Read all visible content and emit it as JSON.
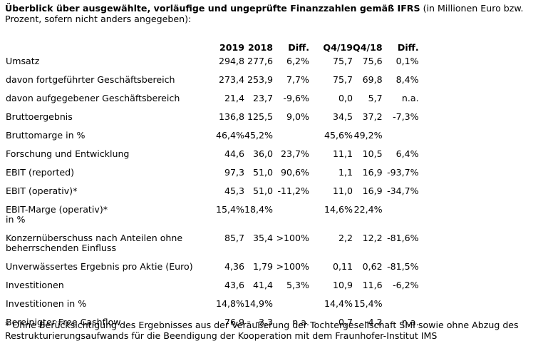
{
  "header": {
    "title_bold": "Überblick über ausgewählte, vorläufige und ungeprüfte Finanzzahlen gemäß IFRS",
    "title_rest": " (in Millionen Euro bzw. Prozent, sofern nicht anders angegeben):"
  },
  "table": {
    "columns": [
      "2019",
      "2018",
      "Diff.",
      "Q4/19",
      "Q4/18",
      "Diff."
    ],
    "rows": [
      {
        "label": "Umsatz",
        "values": [
          "294,8",
          "277,6",
          "6,2%",
          "75,7",
          "75,6",
          "0,1%"
        ]
      },
      {
        "label": "davon fortgeführter Geschäftsbereich",
        "values": [
          "273,4",
          "253,9",
          "7,7%",
          "75,7",
          "69,8",
          "8,4%"
        ]
      },
      {
        "label": "davon aufgegebener Geschäftsbereich",
        "values": [
          "21,4",
          "23,7",
          "-9,6%",
          "0,0",
          "5,7",
          "n.a."
        ]
      },
      {
        "label": "Bruttoergebnis",
        "values": [
          "136,8",
          "125,5",
          "9,0%",
          "34,5",
          "37,2",
          "-7,3%"
        ]
      },
      {
        "label": "Bruttomarge in %",
        "values": [
          "46,4%",
          "45,2%",
          "",
          "45,6%",
          "49,2%",
          ""
        ]
      },
      {
        "label": "Forschung und Entwicklung",
        "values": [
          "44,6",
          "36,0",
          "23,7%",
          "11,1",
          "10,5",
          "6,4%"
        ]
      },
      {
        "label": "EBIT (reported)",
        "values": [
          "97,3",
          "51,0",
          "90,6%",
          "1,1",
          "16,9",
          "-93,7%"
        ]
      },
      {
        "label": "EBIT (operativ)*",
        "values": [
          "45,3",
          "51,0",
          "-11,2%",
          "11,0",
          "16,9",
          "-34,7%"
        ]
      },
      {
        "label": "EBIT-Marge (operativ)*",
        "label2": "in %",
        "values": [
          "15,4%",
          "18,4%",
          "",
          "14,6%",
          "22,4%",
          ""
        ]
      },
      {
        "label": "Konzernüberschuss nach Anteilen ohne",
        "label2": "beherrschenden Einfluss",
        "values": [
          "85,7",
          "35,4",
          ">100%",
          "2,2",
          "12,2",
          "-81,6%"
        ]
      },
      {
        "label": "Unverwässertes Ergebnis pro Aktie (Euro)",
        "values": [
          "4,36",
          "1,79",
          ">100%",
          "0,11",
          "0,62",
          "-81,5%"
        ]
      },
      {
        "label": "Investitionen",
        "values": [
          "43,6",
          "41,4",
          "5,3%",
          "10,9",
          "11,6",
          "-6,2%"
        ]
      },
      {
        "label": "Investitionen in %",
        "values": [
          "14,8%",
          "14,9%",
          "",
          "14,4%",
          "15,4%",
          ""
        ]
      },
      {
        "label": "Bereinigter Free Cashflow",
        "values": [
          "76,9",
          "-3,3",
          "n.a.",
          "0,7",
          "-4,2",
          "n.a."
        ]
      }
    ]
  },
  "footnote": "* Ohne Berücksichtigung des Ergebnisses aus der Veräußerung der Tochtergesellschaft SMI sowie ohne Abzug des Restrukturierungsaufwands für die Beendigung der Kooperation mit dem Fraunhofer-Institut IMS"
}
